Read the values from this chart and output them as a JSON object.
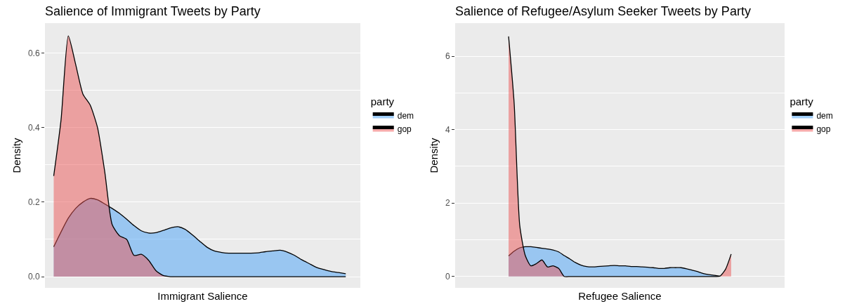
{
  "chart_data": [
    {
      "type": "area",
      "title": "Salience of Immigrant Tweets by Party",
      "xlabel": "Immigrant Salience",
      "ylabel": "Density",
      "legend_title": "party",
      "categories": [
        null,
        null,
        null,
        null,
        null,
        null,
        null,
        null,
        null,
        null,
        null,
        null,
        null,
        null,
        null,
        null,
        null,
        null,
        null,
        null,
        null,
        null,
        null,
        null,
        null,
        null,
        null,
        null,
        null,
        null,
        null,
        null,
        null,
        null,
        null,
        null,
        null,
        null,
        null,
        null,
        null
      ],
      "series": [
        {
          "name": "dem",
          "color": "#99c6f1",
          "values": [
            0.08,
            0.12,
            0.157,
            0.183,
            0.2,
            0.21,
            0.206,
            0.195,
            0.183,
            0.17,
            0.154,
            0.137,
            0.123,
            0.117,
            0.118,
            0.124,
            0.131,
            0.134,
            0.127,
            0.112,
            0.095,
            0.079,
            0.069,
            0.065,
            0.063,
            0.063,
            0.063,
            0.063,
            0.064,
            0.067,
            0.069,
            0.071,
            0.066,
            0.057,
            0.045,
            0.035,
            0.025,
            0.019,
            0.014,
            0.011,
            0.008
          ]
        },
        {
          "name": "gop",
          "color": "#eba0a0",
          "values": [
            0.27,
            0.42,
            0.646,
            0.57,
            0.49,
            0.46,
            0.4,
            0.28,
            0.14,
            0.11,
            0.1,
            0.057,
            0.06,
            0.044,
            0.016,
            0.003,
            0,
            0,
            0,
            0,
            0,
            0,
            0,
            0,
            0,
            0,
            0,
            0,
            0,
            0,
            0,
            0,
            0,
            0,
            0,
            0,
            0,
            0,
            0,
            0,
            0
          ]
        }
      ],
      "ylim": [
        -0.03,
        0.68
      ],
      "yticks": [
        {
          "value": 0,
          "label": "0.0"
        },
        0.2,
        0.4,
        0.6
      ],
      "grid": "y",
      "legend": "right",
      "tick_labels": "y"
    },
    {
      "type": "area",
      "title": "Salience of Refugee/Asylum Seeker Tweets by Party",
      "xlabel": "Refugee Salience",
      "ylabel": "Density",
      "legend_title": "party",
      "categories": [
        null,
        null,
        null,
        null,
        null,
        null,
        null,
        null,
        null,
        null,
        null,
        null,
        null,
        null,
        null,
        null,
        null,
        null,
        null,
        null,
        null,
        null,
        null,
        null,
        null,
        null,
        null,
        null,
        null,
        null,
        null,
        null,
        null,
        null,
        null,
        null,
        null,
        null,
        null,
        null,
        null
      ],
      "series": [
        {
          "name": "dem",
          "color": "#99c6f1",
          "values": [
            0.56,
            0.69,
            0.78,
            0.81,
            0.81,
            0.79,
            0.77,
            0.75,
            0.72,
            0.67,
            0.57,
            0.48,
            0.38,
            0.31,
            0.27,
            0.26,
            0.27,
            0.28,
            0.29,
            0.3,
            0.29,
            0.29,
            0.27,
            0.27,
            0.26,
            0.25,
            0.24,
            0.22,
            0.22,
            0.24,
            0.24,
            0.24,
            0.21,
            0.17,
            0.13,
            0.08,
            0.05,
            0.03,
            0.01,
            null,
            null
          ]
        },
        {
          "name": "gop",
          "color": "#eba0a0",
          "values": [
            6.54,
            4.72,
            1.4,
            0.57,
            0.29,
            0.35,
            0.45,
            0.26,
            0.29,
            0.22,
            0,
            0,
            0,
            0,
            0,
            0,
            0,
            0,
            0,
            0,
            0,
            0,
            0,
            0,
            0,
            0,
            0,
            0,
            0,
            0,
            0,
            0,
            0,
            0,
            0,
            0,
            0,
            0,
            0.01,
            0.2,
            0.61
          ]
        }
      ],
      "ylim": [
        -0.31,
        6.9
      ],
      "yticks": [
        0,
        2,
        4,
        6
      ],
      "grid": "y",
      "legend": "right",
      "tick_labels": "y"
    }
  ]
}
